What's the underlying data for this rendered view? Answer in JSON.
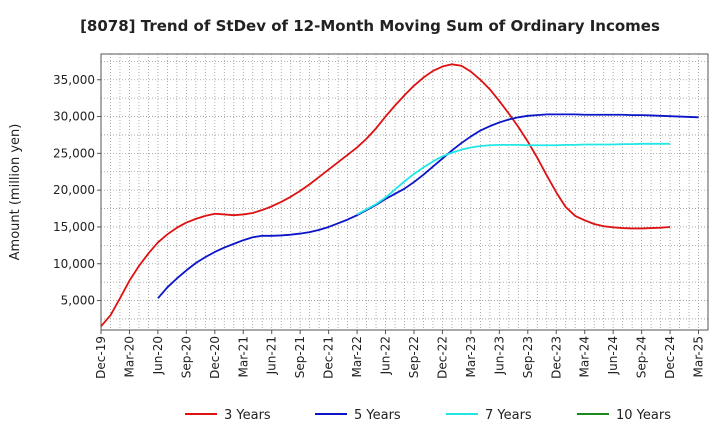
{
  "chart_data": {
    "type": "line",
    "title": "[8078]  Trend of StDev of 12-Month Moving Sum of Ordinary Incomes",
    "xlabel": "",
    "ylabel": "Amount (million yen)",
    "ylim": [
      1000,
      38500
    ],
    "yticks": [
      5000,
      10000,
      15000,
      20000,
      25000,
      30000,
      35000
    ],
    "ytick_labels": [
      "5,000",
      "10,000",
      "15,000",
      "20,000",
      "25,000",
      "30,000",
      "35,000"
    ],
    "x_start": "Dec-19",
    "x_count": 64,
    "xtick_labels": [
      "Dec-19",
      "Mar-20",
      "Jun-20",
      "Sep-20",
      "Dec-20",
      "Mar-21",
      "Jun-21",
      "Sep-21",
      "Dec-21",
      "Mar-22",
      "Jun-22",
      "Sep-22",
      "Dec-22",
      "Mar-23",
      "Jun-23",
      "Sep-23",
      "Dec-23",
      "Mar-24",
      "Jun-24",
      "Sep-24",
      "Dec-24",
      "Mar-25"
    ],
    "grid": true,
    "legend_position": "bottom",
    "series": [
      {
        "name": "3 Years",
        "color": "#dd1111",
        "start_index": 0,
        "values": [
          1500,
          3000,
          5300,
          7700,
          9700,
          11400,
          12900,
          14000,
          14900,
          15600,
          16100,
          16500,
          16800,
          16700,
          16600,
          16700,
          16900,
          17300,
          17800,
          18400,
          19100,
          19900,
          20800,
          21800,
          22800,
          23800,
          24800,
          25800,
          27000,
          28400,
          30000,
          31500,
          32900,
          34200,
          35300,
          36200,
          36800,
          37100,
          36900,
          36100,
          35000,
          33700,
          32100,
          30400,
          28600,
          26600,
          24400,
          22000,
          19700,
          17700,
          16500,
          15900,
          15400,
          15100,
          14950,
          14850,
          14800,
          14800,
          14850,
          14900,
          15000
        ]
      },
      {
        "name": "5 Years",
        "color": "#0a14c8",
        "start_index": 6,
        "values": [
          5300,
          6800,
          8000,
          9100,
          10100,
          10900,
          11600,
          12200,
          12700,
          13200,
          13600,
          13800,
          13800,
          13850,
          13950,
          14100,
          14300,
          14600,
          15000,
          15500,
          16000,
          16600,
          17300,
          18000,
          18800,
          19500,
          20200,
          21100,
          22100,
          23200,
          24300,
          25400,
          26400,
          27300,
          28100,
          28700,
          29200,
          29600,
          29900,
          30100,
          30200,
          30300,
          30300,
          30300,
          30300,
          30250,
          30250,
          30250,
          30250,
          30250,
          30200,
          30200,
          30150,
          30100,
          30050,
          30000,
          29950,
          29900
        ]
      },
      {
        "name": "7 Years",
        "color": "#22e6e6",
        "start_index": 27,
        "values": [
          16700,
          17400,
          18100,
          19000,
          20100,
          21200,
          22200,
          23100,
          23900,
          24600,
          25100,
          25500,
          25800,
          26000,
          26100,
          26150,
          26150,
          26150,
          26100,
          26100,
          26100,
          26100,
          26150,
          26150,
          26200,
          26200,
          26200,
          26200,
          26250,
          26250,
          26300,
          26300,
          26300,
          26300
        ]
      },
      {
        "name": "10 Years",
        "color": "#1a8a1a",
        "start_index": 0,
        "values": []
      }
    ]
  }
}
